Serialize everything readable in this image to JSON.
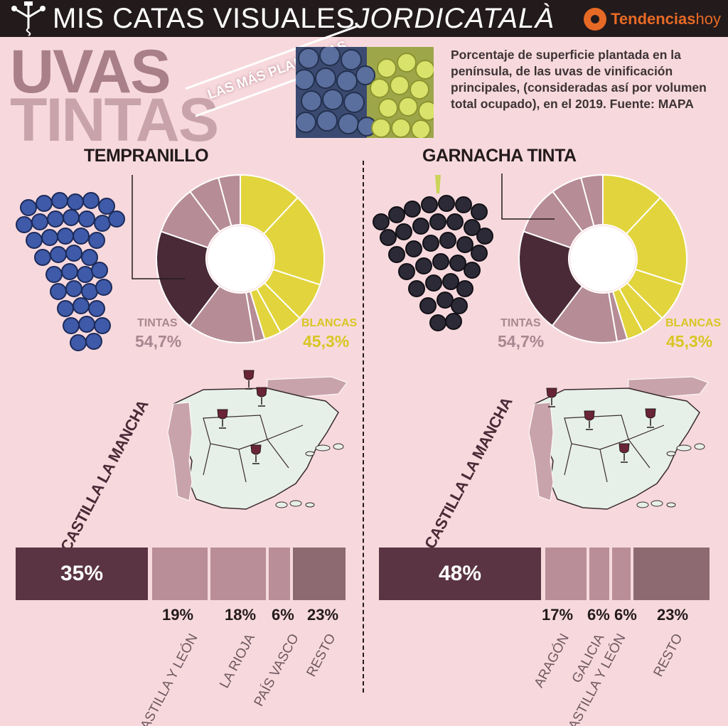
{
  "header": {
    "brand_part1": "MIS CATAS VISUALES",
    "brand_part2": "JORDICATALÀ",
    "logo_part1": "Tendencias",
    "logo_part2": "hoy"
  },
  "title": {
    "line1": "UVAS",
    "line2": "TINTAS",
    "banner": "LAS MÁS PLANTADAS"
  },
  "description": "Porcentaje de superficie plantada en la península, de las uvas de vinificación principales, (consideradas así por volumen total ocupado), en el 2019. Fuente: MAPA",
  "colors": {
    "background": "#f7d9dd",
    "dark": "#231a1c",
    "bar_main": "#5a3442",
    "bar_light": "#b98e98",
    "bar_rest": "#8d6a72",
    "yellow": "#e2d43c",
    "red_dark": "#4a2a36",
    "rose": "#b68c96"
  },
  "chart_data": [
    {
      "type": "pie",
      "title": "TEMPRANILLO",
      "categories": [
        "TINTAS",
        "BLANCAS"
      ],
      "values": [
        54.7,
        45.3
      ],
      "labels": [
        "54,7%",
        "45,3%"
      ],
      "tinta_slices": [
        2.0,
        13.0,
        20.0,
        9.5,
        6.0,
        4.2
      ],
      "blanca_slices": [
        12.0,
        18.0,
        7.5,
        4.5,
        3.3
      ]
    },
    {
      "type": "pie",
      "title": "GARNACHA TINTA",
      "categories": [
        "TINTAS",
        "BLANCAS"
      ],
      "values": [
        54.7,
        45.3
      ],
      "labels": [
        "54,7%",
        "45,3%"
      ],
      "tinta_slices": [
        2.0,
        13.0,
        20.0,
        9.5,
        6.0,
        4.2
      ],
      "blanca_slices": [
        12.0,
        18.0,
        7.5,
        4.5,
        3.3
      ]
    },
    {
      "type": "bar",
      "title": "TEMPRANILLO",
      "categories": [
        "CASTILLA LA MANCHA",
        "CASTILLA Y LEÓN",
        "LA RIOJA",
        "PAÍS VASCO",
        "RESTO"
      ],
      "values": [
        35,
        19,
        18,
        6,
        23
      ],
      "labels": [
        "35%",
        "19%",
        "18%",
        "6%",
        "23%"
      ]
    },
    {
      "type": "bar",
      "title": "GARNACHA TINTA",
      "categories": [
        "CASTILLA LA MANCHA",
        "ARAGÓN",
        "GALICIA",
        "CASTILLA Y LEÓN",
        "RESTO"
      ],
      "values": [
        48,
        17,
        6,
        6,
        23
      ],
      "labels": [
        "48%",
        "17%",
        "6%",
        "6%",
        "23%"
      ]
    }
  ]
}
